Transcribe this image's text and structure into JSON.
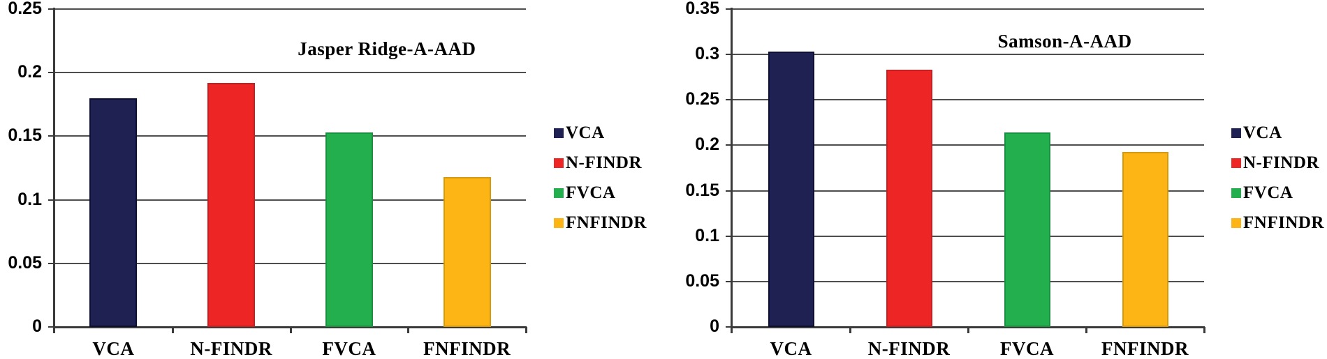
{
  "figure": {
    "background": "#ffffff",
    "axis_color": "#3a3a3a",
    "gridline_color": "#4e4e4e",
    "text_color": "#000000"
  },
  "chart_data": [
    {
      "type": "bar",
      "title": "Jasper Ridge-A-AAD",
      "categories": [
        "VCA",
        "N-FINDR",
        "FVCA",
        "FNFINDR"
      ],
      "values": [
        0.18,
        0.192,
        0.153,
        0.118
      ],
      "bar_colors": [
        "#1F2152",
        "#EE2525",
        "#24AF4E",
        "#FCB514"
      ],
      "bar_border_colors": [
        "#0e1033",
        "#c81f21",
        "#1d8f40",
        "#d89a0d"
      ],
      "xlabel": "",
      "ylabel": "",
      "ylim": [
        0,
        0.25
      ],
      "yticks": [
        0,
        0.05,
        0.1,
        0.15,
        0.2,
        0.25
      ],
      "ytick_labels": [
        "0",
        "0.05",
        "0.1",
        "0.15",
        "0.2",
        "0.25"
      ],
      "grid": true,
      "legend_position": "right",
      "legend": [
        {
          "label": "VCA",
          "color": "#1F2152"
        },
        {
          "label": "N-FINDR",
          "color": "#EE2525"
        },
        {
          "label": "FVCA",
          "color": "#24AF4E"
        },
        {
          "label": "FNFINDR",
          "color": "#FCB514"
        }
      ]
    },
    {
      "type": "bar",
      "title": "Samson-A-AAD",
      "categories": [
        "VCA",
        "N-FINDR",
        "FVCA",
        "FNFINDR"
      ],
      "values": [
        0.303,
        0.283,
        0.214,
        0.193
      ],
      "bar_colors": [
        "#1F2152",
        "#EE2525",
        "#24AF4E",
        "#FCB514"
      ],
      "bar_border_colors": [
        "#0e1033",
        "#c81f21",
        "#1d8f40",
        "#d89a0d"
      ],
      "xlabel": "",
      "ylabel": "",
      "ylim": [
        0,
        0.35
      ],
      "yticks": [
        0,
        0.05,
        0.1,
        0.15,
        0.2,
        0.25,
        0.3,
        0.35
      ],
      "ytick_labels": [
        "0",
        "0.05",
        "0.1",
        "0.15",
        "0.2",
        "0.25",
        "0.3",
        "0.35"
      ],
      "grid": true,
      "legend_position": "right",
      "legend": [
        {
          "label": "VCA",
          "color": "#1F2152"
        },
        {
          "label": "N-FINDR",
          "color": "#EE2525"
        },
        {
          "label": "FVCA",
          "color": "#24AF4E"
        },
        {
          "label": "FNFINDR",
          "color": "#FCB514"
        }
      ]
    }
  ]
}
